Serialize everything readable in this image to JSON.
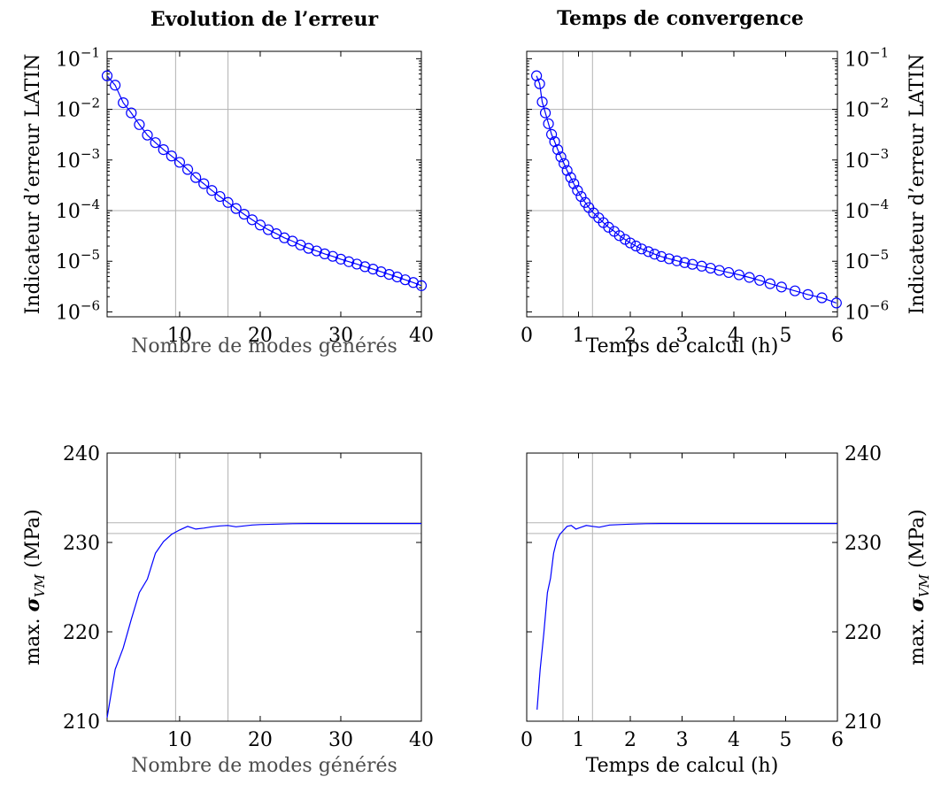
{
  "chart_data": [
    {
      "id": "error-vs-modes",
      "type": "line",
      "title": "Evolution de l’erreur",
      "xlabel": "Nombre de modes générés",
      "ylabel": "Indicateur d’erreur LATIN",
      "xscale": "linear",
      "yscale": "log",
      "xlim": [
        1,
        40
      ],
      "ylim": [
        8e-07,
        0.14
      ],
      "xticks": [
        10,
        20,
        30,
        40
      ],
      "yticks": [
        1e-06,
        1e-05,
        0.0001,
        0.001,
        0.01,
        0.1
      ],
      "ytick_labels": [
        [
          "10",
          "−6"
        ],
        [
          "10",
          "−5"
        ],
        [
          "10",
          "−4"
        ],
        [
          "10",
          "−3"
        ],
        [
          "10",
          "−2"
        ],
        [
          "10",
          "−1"
        ]
      ],
      "ytick_side": "left",
      "vlines": [
        9.5,
        16
      ],
      "hlines": [
        0.01,
        0.0001
      ],
      "markers": true,
      "series": [
        {
          "x": [
            1,
            2,
            3,
            4,
            5,
            6,
            7,
            8,
            9,
            10,
            11,
            12,
            13,
            14,
            15,
            16,
            17,
            18,
            19,
            20,
            21,
            22,
            23,
            24,
            25,
            26,
            27,
            28,
            29,
            30,
            31,
            32,
            33,
            34,
            35,
            36,
            37,
            38,
            39,
            40
          ],
          "y": [
            0.046,
            0.03,
            0.0135,
            0.0085,
            0.005,
            0.0031,
            0.0022,
            0.0016,
            0.0012,
            0.0009,
            0.00065,
            0.00045,
            0.00034,
            0.00025,
            0.00019,
            0.000145,
            0.00011,
            8.5e-05,
            6.6e-05,
            5.2e-05,
            4.2e-05,
            3.5e-05,
            2.9e-05,
            2.5e-05,
            2.1e-05,
            1.8e-05,
            1.6e-05,
            1.4e-05,
            1.25e-05,
            1.1e-05,
            9.8e-06,
            8.8e-06,
            7.8e-06,
            7e-06,
            6.2e-06,
            5.5e-06,
            4.9e-06,
            4.3e-06,
            3.8e-06,
            3.3e-06
          ]
        }
      ]
    },
    {
      "id": "error-vs-time",
      "type": "line",
      "title": "Temps de convergence",
      "xlabel": "Temps de calcul (h)",
      "ylabel": "Indicateur d’erreur LATIN",
      "xscale": "linear",
      "yscale": "log",
      "xlim": [
        0,
        6
      ],
      "ylim": [
        8e-07,
        0.14
      ],
      "xticks": [
        0,
        1,
        2,
        3,
        4,
        5,
        6
      ],
      "yticks": [
        1e-06,
        1e-05,
        0.0001,
        0.001,
        0.01,
        0.1
      ],
      "ytick_labels": [
        [
          "10",
          "−6"
        ],
        [
          "10",
          "−5"
        ],
        [
          "10",
          "−4"
        ],
        [
          "10",
          "−3"
        ],
        [
          "10",
          "−2"
        ],
        [
          "10",
          "−1"
        ]
      ],
      "ytick_side": "right",
      "vlines": [
        0.7,
        1.27
      ],
      "hlines": [
        0.01,
        0.0001
      ],
      "markers": true,
      "series": [
        {
          "x": [
            0.19,
            0.25,
            0.3,
            0.36,
            0.42,
            0.48,
            0.54,
            0.6,
            0.66,
            0.72,
            0.78,
            0.85,
            0.91,
            0.98,
            1.05,
            1.13,
            1.2,
            1.29,
            1.39,
            1.48,
            1.58,
            1.69,
            1.79,
            1.9,
            2.0,
            2.11,
            2.22,
            2.35,
            2.47,
            2.6,
            2.75,
            2.9,
            3.05,
            3.2,
            3.38,
            3.55,
            3.72,
            3.9,
            4.1,
            4.3,
            4.5,
            4.7,
            4.92,
            5.18,
            5.43,
            5.7,
            5.98
          ],
          "y": [
            0.046,
            0.032,
            0.014,
            0.0085,
            0.0052,
            0.0032,
            0.0023,
            0.0016,
            0.00115,
            0.00085,
            0.00062,
            0.00045,
            0.00034,
            0.00025,
            0.00019,
            0.000145,
            0.000115,
            9e-05,
            7.2e-05,
            5.8e-05,
            4.7e-05,
            3.9e-05,
            3.2e-05,
            2.7e-05,
            2.3e-05,
            2e-05,
            1.75e-05,
            1.55e-05,
            1.38e-05,
            1.24e-05,
            1.12e-05,
            1.02e-05,
            9.4e-06,
            8.7e-06,
            8e-06,
            7.3e-06,
            6.6e-06,
            6e-06,
            5.4e-06,
            4.8e-06,
            4.2e-06,
            3.6e-06,
            3.1e-06,
            2.6e-06,
            2.2e-06,
            1.9e-06,
            1.5e-06
          ]
        }
      ]
    },
    {
      "id": "stress-vs-modes",
      "type": "line",
      "xlabel": "Nombre de modes générés",
      "ylabel": "max. σ_VM (MPa)",
      "xscale": "linear",
      "yscale": "linear",
      "xlim": [
        1,
        40
      ],
      "ylim": [
        210,
        240
      ],
      "xticks": [
        10,
        20,
        30,
        40
      ],
      "yticks": [
        210,
        220,
        230,
        240
      ],
      "ytick_side": "left",
      "vlines": [
        9.5,
        16
      ],
      "hlines": [
        232.2,
        231
      ],
      "markers": false,
      "series": [
        {
          "x": [
            1,
            2,
            3,
            4,
            5,
            6,
            7,
            8,
            9,
            10,
            11,
            12,
            13,
            14,
            15,
            16,
            17,
            18,
            19,
            20,
            22,
            24,
            26,
            28,
            30,
            32,
            34,
            36,
            38,
            40
          ],
          "y": [
            210.4,
            215.8,
            218.2,
            221.4,
            224.4,
            225.9,
            228.8,
            230.1,
            230.9,
            231.4,
            231.8,
            231.5,
            231.6,
            231.75,
            231.85,
            231.9,
            231.75,
            231.85,
            231.95,
            232.0,
            232.05,
            232.1,
            232.12,
            232.12,
            232.12,
            232.12,
            232.12,
            232.12,
            232.12,
            232.12
          ]
        }
      ]
    },
    {
      "id": "stress-vs-time",
      "type": "line",
      "xlabel": "Temps de calcul (h)",
      "ylabel": "max. σ_VM (MPa)",
      "xscale": "linear",
      "yscale": "linear",
      "xlim": [
        0,
        6
      ],
      "ylim": [
        210,
        240
      ],
      "xticks": [
        0,
        1,
        2,
        3,
        4,
        5,
        6
      ],
      "yticks": [
        210,
        220,
        230,
        240
      ],
      "ytick_side": "right",
      "vlines": [
        0.7,
        1.27
      ],
      "hlines": [
        232.2,
        231
      ],
      "markers": false,
      "series": [
        {
          "x": [
            0.2,
            0.26,
            0.33,
            0.4,
            0.46,
            0.52,
            0.58,
            0.64,
            0.7,
            0.78,
            0.86,
            0.95,
            1.05,
            1.15,
            1.27,
            1.4,
            1.6,
            1.8,
            2.0,
            2.3,
            2.6,
            3.0,
            3.5,
            4.0,
            4.5,
            5.0,
            5.5,
            6.0
          ],
          "y": [
            211.3,
            215.8,
            219.8,
            224.4,
            226.0,
            228.8,
            230.2,
            230.9,
            231.3,
            231.8,
            231.9,
            231.5,
            231.7,
            231.9,
            231.8,
            231.7,
            231.95,
            232.0,
            232.05,
            232.1,
            232.12,
            232.12,
            232.12,
            232.12,
            232.12,
            232.12,
            232.12,
            232.12
          ]
        }
      ]
    }
  ]
}
